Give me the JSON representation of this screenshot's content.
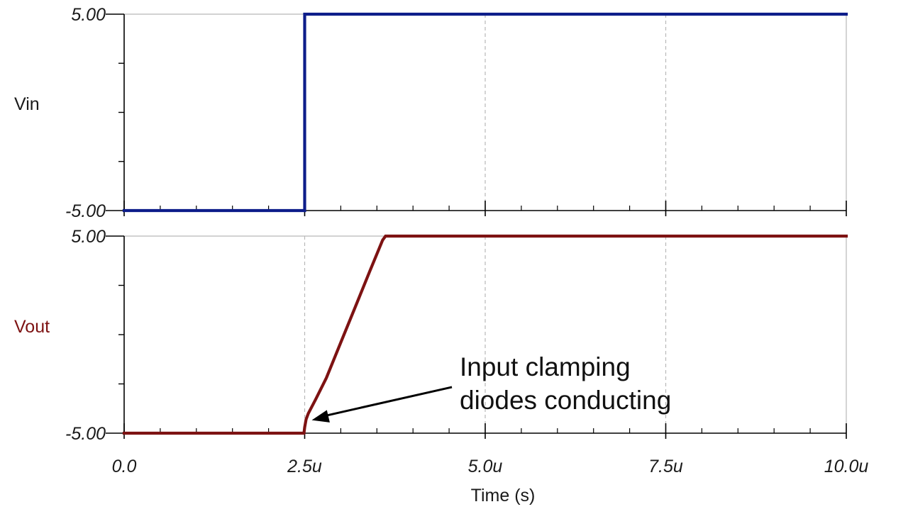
{
  "chart_data": [
    {
      "type": "line",
      "ylabel": "Vin",
      "ylim": [
        -5,
        5
      ],
      "y_ticks": [
        "5.00",
        "-5.00"
      ],
      "xlim": [
        0,
        10
      ],
      "grid": "vertical dashed",
      "series": [
        {
          "color": "#0d1d8a",
          "points": [
            [
              0,
              -5
            ],
            [
              2.5,
              -5
            ],
            [
              2.5,
              5
            ],
            [
              10,
              5
            ]
          ]
        }
      ]
    },
    {
      "type": "line",
      "ylabel": "Vout",
      "ylim": [
        -5,
        5
      ],
      "y_ticks": [
        "5.00",
        "-5.00"
      ],
      "xlim": [
        0,
        10
      ],
      "x_ticks": [
        {
          "value": 0,
          "label": "0.0"
        },
        {
          "value": 2.5,
          "label": "2.5u"
        },
        {
          "value": 5,
          "label": "5.0u"
        },
        {
          "value": 7.5,
          "label": "7.5u"
        },
        {
          "value": 10,
          "label": "10.0u"
        }
      ],
      "xlabel": "Time (s)",
      "grid": "vertical dashed",
      "series": [
        {
          "color": "#7d1212",
          "points": [
            [
              0,
              -5
            ],
            [
              2.49,
              -5
            ],
            [
              2.5,
              -4.7
            ],
            [
              2.52,
              -4.3
            ],
            [
              2.55,
              -4.0
            ],
            [
              2.65,
              -3.3
            ],
            [
              2.8,
              -2.2
            ],
            [
              3.0,
              -0.4
            ],
            [
              3.2,
              1.4
            ],
            [
              3.4,
              3.2
            ],
            [
              3.58,
              4.8
            ],
            [
              3.62,
              5
            ],
            [
              10,
              5
            ]
          ]
        }
      ],
      "annotation": {
        "lines": [
          "Input clamping",
          "diodes conducting"
        ],
        "arrow_target": [
          2.5,
          -4.7
        ]
      }
    }
  ],
  "colors": {
    "vin_label": "#1a1a1a",
    "vout_label": "#7d1212",
    "axis": "#000000",
    "frame": "#b8b8b8",
    "grid": "#b8b8b8"
  }
}
